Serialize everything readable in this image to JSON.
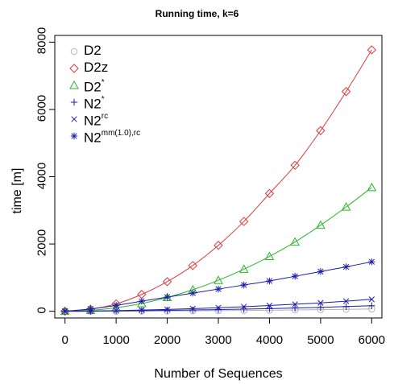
{
  "chart_data": {
    "type": "line",
    "title": "Running time, k=6",
    "xlabel": "Number of Sequences",
    "ylabel": "time [m]",
    "xlim": [
      -200,
      6200
    ],
    "ylim": [
      -200,
      8200
    ],
    "x_ticks": [
      0,
      1000,
      2000,
      3000,
      4000,
      5000,
      6000
    ],
    "y_ticks": [
      0,
      2000,
      4000,
      6000,
      8000
    ],
    "grid": false,
    "legend_position": "top-left",
    "x": [
      0,
      500,
      1000,
      1500,
      2000,
      2500,
      3000,
      3500,
      4000,
      4500,
      5000,
      5500,
      6000
    ],
    "series": [
      {
        "name": "D2",
        "base": "D2",
        "sup": "",
        "marker": "circle",
        "color": "#b3b3b3",
        "values": [
          0,
          1,
          3,
          5,
          9,
          13,
          18,
          24,
          31,
          39,
          48,
          57,
          68
        ]
      },
      {
        "name": "D2z",
        "base": "D2z",
        "sup": "",
        "marker": "diamond",
        "color": "#df3a3a",
        "values": [
          2,
          60,
          220,
          500,
          880,
          1360,
          1960,
          2670,
          3500,
          4340,
          5370,
          6530,
          7770
        ]
      },
      {
        "name": "D2*",
        "base": "D2",
        "sup": "*",
        "marker": "triangle",
        "color": "#2ab52a",
        "values": [
          1,
          30,
          105,
          230,
          410,
          640,
          920,
          1250,
          1630,
          2060,
          2560,
          3100,
          3680
        ]
      },
      {
        "name": "N2*",
        "base": "N2",
        "sup": "*",
        "marker": "plus",
        "color": "#1c1caa",
        "values": [
          0,
          3,
          10,
          18,
          28,
          38,
          50,
          63,
          78,
          95,
          115,
          140,
          165
        ]
      },
      {
        "name": "N2rc",
        "base": "N2",
        "sup": "rc",
        "marker": "cross",
        "color": "#1c1caa",
        "values": [
          0,
          6,
          18,
          35,
          55,
          78,
          105,
          135,
          170,
          210,
          250,
          300,
          355
        ]
      },
      {
        "name": "N2mm(1.0),rc",
        "base": "N2",
        "sup": "mm(1.0),rc",
        "marker": "asterisk",
        "color": "#1c1caa",
        "values": [
          2,
          70,
          175,
          300,
          420,
          540,
          660,
          780,
          900,
          1040,
          1180,
          1320,
          1470
        ]
      }
    ]
  }
}
